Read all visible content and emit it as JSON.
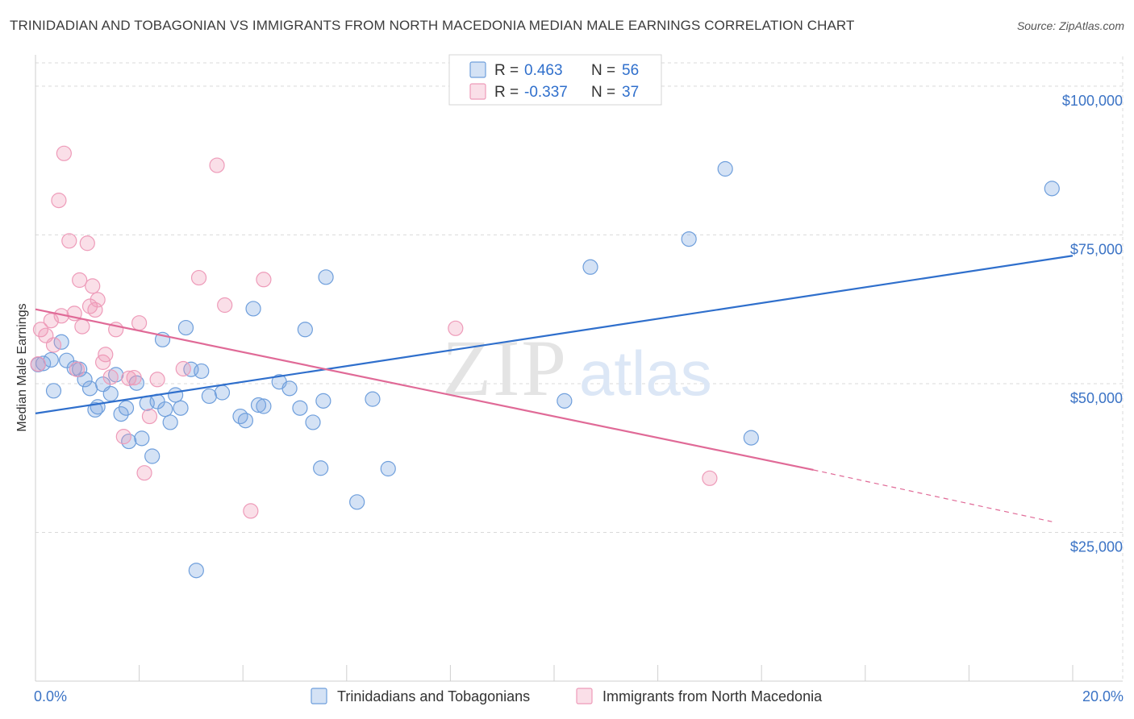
{
  "title": "TRINIDADIAN AND TOBAGONIAN VS IMMIGRANTS FROM NORTH MACEDONIA MEDIAN MALE EARNINGS CORRELATION CHART",
  "source": "Source: ZipAtlas.com",
  "watermark": {
    "zip": "ZIP",
    "atlas": "atlas"
  },
  "colors": {
    "blue": "#2f6fcc",
    "blue_fill": "rgba(120,165,225,0.32)",
    "blue_stroke": "#6f9fdc",
    "pink": "#e06a97",
    "pink_fill": "rgba(240,150,180,0.30)",
    "pink_stroke": "#ee9bb9",
    "grid": "#d9d9d9",
    "tick_label": "#3b73c5"
  },
  "legend": {
    "r_label": "R =",
    "n_label": "N =",
    "rows": [
      {
        "r": "0.463",
        "n": "56",
        "color": "blue"
      },
      {
        "r": "-0.337",
        "n": "37",
        "color": "pink"
      }
    ]
  },
  "chart_data": {
    "type": "scatter",
    "title": "TRINIDADIAN AND TOBAGONIAN VS IMMIGRANTS FROM NORTH MACEDONIA MEDIAN MALE EARNINGS CORRELATION CHART",
    "xlabel": "",
    "ylabel": "Median Male Earnings",
    "xlim": [
      0,
      20
    ],
    "ylim": [
      0,
      105000
    ],
    "x_tick_labels": [
      {
        "value": 0,
        "label": "0.0%"
      },
      {
        "value": 20,
        "label": "20.0%"
      }
    ],
    "y_ticks": [
      {
        "value": 25000,
        "label": "$25,000"
      },
      {
        "value": 50000,
        "label": "$50,000"
      },
      {
        "value": 75000,
        "label": "$75,000"
      },
      {
        "value": 100000,
        "label": "$100,000"
      }
    ],
    "grid": true,
    "legend_position": "bottom",
    "series": [
      {
        "name": "Trinidadians and Tobagonians",
        "color": "blue",
        "trend": {
          "x0": 0,
          "y0": 45000,
          "x1": 20,
          "y1": 71500
        },
        "points": [
          [
            0.05,
            53200
          ],
          [
            0.15,
            53400
          ],
          [
            0.3,
            54000
          ],
          [
            0.35,
            48800
          ],
          [
            0.5,
            57000
          ],
          [
            0.6,
            53900
          ],
          [
            0.75,
            52600
          ],
          [
            0.85,
            52400
          ],
          [
            0.95,
            50700
          ],
          [
            1.05,
            49200
          ],
          [
            1.15,
            45600
          ],
          [
            1.2,
            46100
          ],
          [
            1.3,
            49900
          ],
          [
            1.45,
            48300
          ],
          [
            1.55,
            51500
          ],
          [
            1.65,
            44900
          ],
          [
            1.75,
            45900
          ],
          [
            1.8,
            40300
          ],
          [
            1.95,
            50100
          ],
          [
            2.05,
            40800
          ],
          [
            2.15,
            46700
          ],
          [
            2.25,
            37800
          ],
          [
            2.35,
            47000
          ],
          [
            2.45,
            57400
          ],
          [
            2.5,
            45700
          ],
          [
            2.6,
            43500
          ],
          [
            2.7,
            48100
          ],
          [
            2.8,
            45900
          ],
          [
            2.9,
            59400
          ],
          [
            3.0,
            52400
          ],
          [
            3.1,
            18600
          ],
          [
            3.2,
            52100
          ],
          [
            3.35,
            47900
          ],
          [
            3.6,
            48500
          ],
          [
            3.95,
            44500
          ],
          [
            4.05,
            43800
          ],
          [
            4.2,
            62600
          ],
          [
            4.3,
            46400
          ],
          [
            4.4,
            46200
          ],
          [
            4.7,
            50300
          ],
          [
            4.9,
            49200
          ],
          [
            5.1,
            45900
          ],
          [
            5.2,
            59100
          ],
          [
            5.35,
            43500
          ],
          [
            5.5,
            35800
          ],
          [
            5.55,
            47100
          ],
          [
            5.6,
            67900
          ],
          [
            6.2,
            30100
          ],
          [
            6.5,
            47400
          ],
          [
            6.8,
            35700
          ],
          [
            10.2,
            47100
          ],
          [
            10.7,
            69600
          ],
          [
            12.6,
            74300
          ],
          [
            13.3,
            86100
          ],
          [
            13.8,
            40900
          ],
          [
            19.6,
            82800
          ]
        ]
      },
      {
        "name": "Immigrants from North Macedonia",
        "color": "pink",
        "trend": {
          "x0": 0,
          "y0": 62500,
          "x1": 15,
          "y1": 35500,
          "dash_to_x": 19.6,
          "dash_to_y": 26800
        },
        "points": [
          [
            0.05,
            53300
          ],
          [
            0.1,
            59100
          ],
          [
            0.2,
            58100
          ],
          [
            0.3,
            60600
          ],
          [
            0.35,
            56500
          ],
          [
            0.45,
            80800
          ],
          [
            0.5,
            61400
          ],
          [
            0.55,
            88700
          ],
          [
            0.65,
            74000
          ],
          [
            0.75,
            61800
          ],
          [
            0.8,
            52400
          ],
          [
            0.85,
            67400
          ],
          [
            0.9,
            59600
          ],
          [
            1.0,
            73600
          ],
          [
            1.05,
            63000
          ],
          [
            1.1,
            66400
          ],
          [
            1.15,
            62400
          ],
          [
            1.2,
            64100
          ],
          [
            1.3,
            53600
          ],
          [
            1.35,
            54900
          ],
          [
            1.45,
            51100
          ],
          [
            1.55,
            59100
          ],
          [
            1.7,
            41100
          ],
          [
            1.8,
            50900
          ],
          [
            1.9,
            51000
          ],
          [
            2.0,
            60200
          ],
          [
            2.1,
            35000
          ],
          [
            2.2,
            44500
          ],
          [
            2.35,
            50700
          ],
          [
            2.85,
            52500
          ],
          [
            3.15,
            67800
          ],
          [
            3.5,
            86700
          ],
          [
            3.65,
            63200
          ],
          [
            4.15,
            28600
          ],
          [
            4.4,
            67500
          ],
          [
            8.1,
            59300
          ],
          [
            13.0,
            34100
          ]
        ]
      }
    ]
  }
}
